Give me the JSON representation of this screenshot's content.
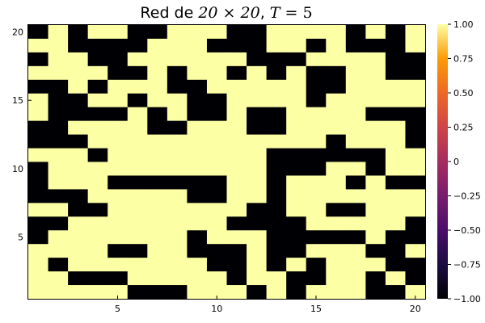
{
  "chart_data": {
    "type": "heatmap",
    "title_prefix": "Red de ",
    "title_math": "20 × 20",
    "title_sep": ", ",
    "title_var": "T",
    "title_eq": " = 5",
    "xlim": [
      0.5,
      20.5
    ],
    "ylim": [
      0.5,
      20.5
    ],
    "xticks": [
      5,
      10,
      15,
      20
    ],
    "yticks": [
      5,
      10,
      15,
      20
    ],
    "colorbar": {
      "range": [
        -1.0,
        1.0
      ],
      "ticks": [
        -1.0,
        -0.75,
        -0.5,
        -0.25,
        0,
        0.25,
        0.5,
        0.75,
        1.0
      ],
      "tick_labels": [
        "−1.00",
        "−0.75",
        "−0.50",
        "−0.25",
        "0",
        "0.25",
        "0.50",
        "0.75",
        "1.00"
      ],
      "colormap": "inferno"
    },
    "values_legend": "rows listed from y=20 (top) to y=1 (bottom); columns x=1..20; 1=yellow(+1), 0=black(-1)",
    "grid": [
      "01011001110011110101",
      "11000011100011010001",
      "01100111111000111100",
      "11110010110101001100",
      "00101110011111001111",
      "10011011001111011111",
      "10000101001001111000",
      "00111100111001111110",
      "00011111111111101110",
      "11101111111100000011",
      "01111111111100011011",
      "01110000001101110100",
      "00011111001101111111",
      "11001111111001100111",
      "00111111110000111110",
      "01111111011100000100",
      "11110011000100111001",
      "10111111100101011100",
      "11000111110110011010",
      "11111000111010111001"
    ]
  }
}
